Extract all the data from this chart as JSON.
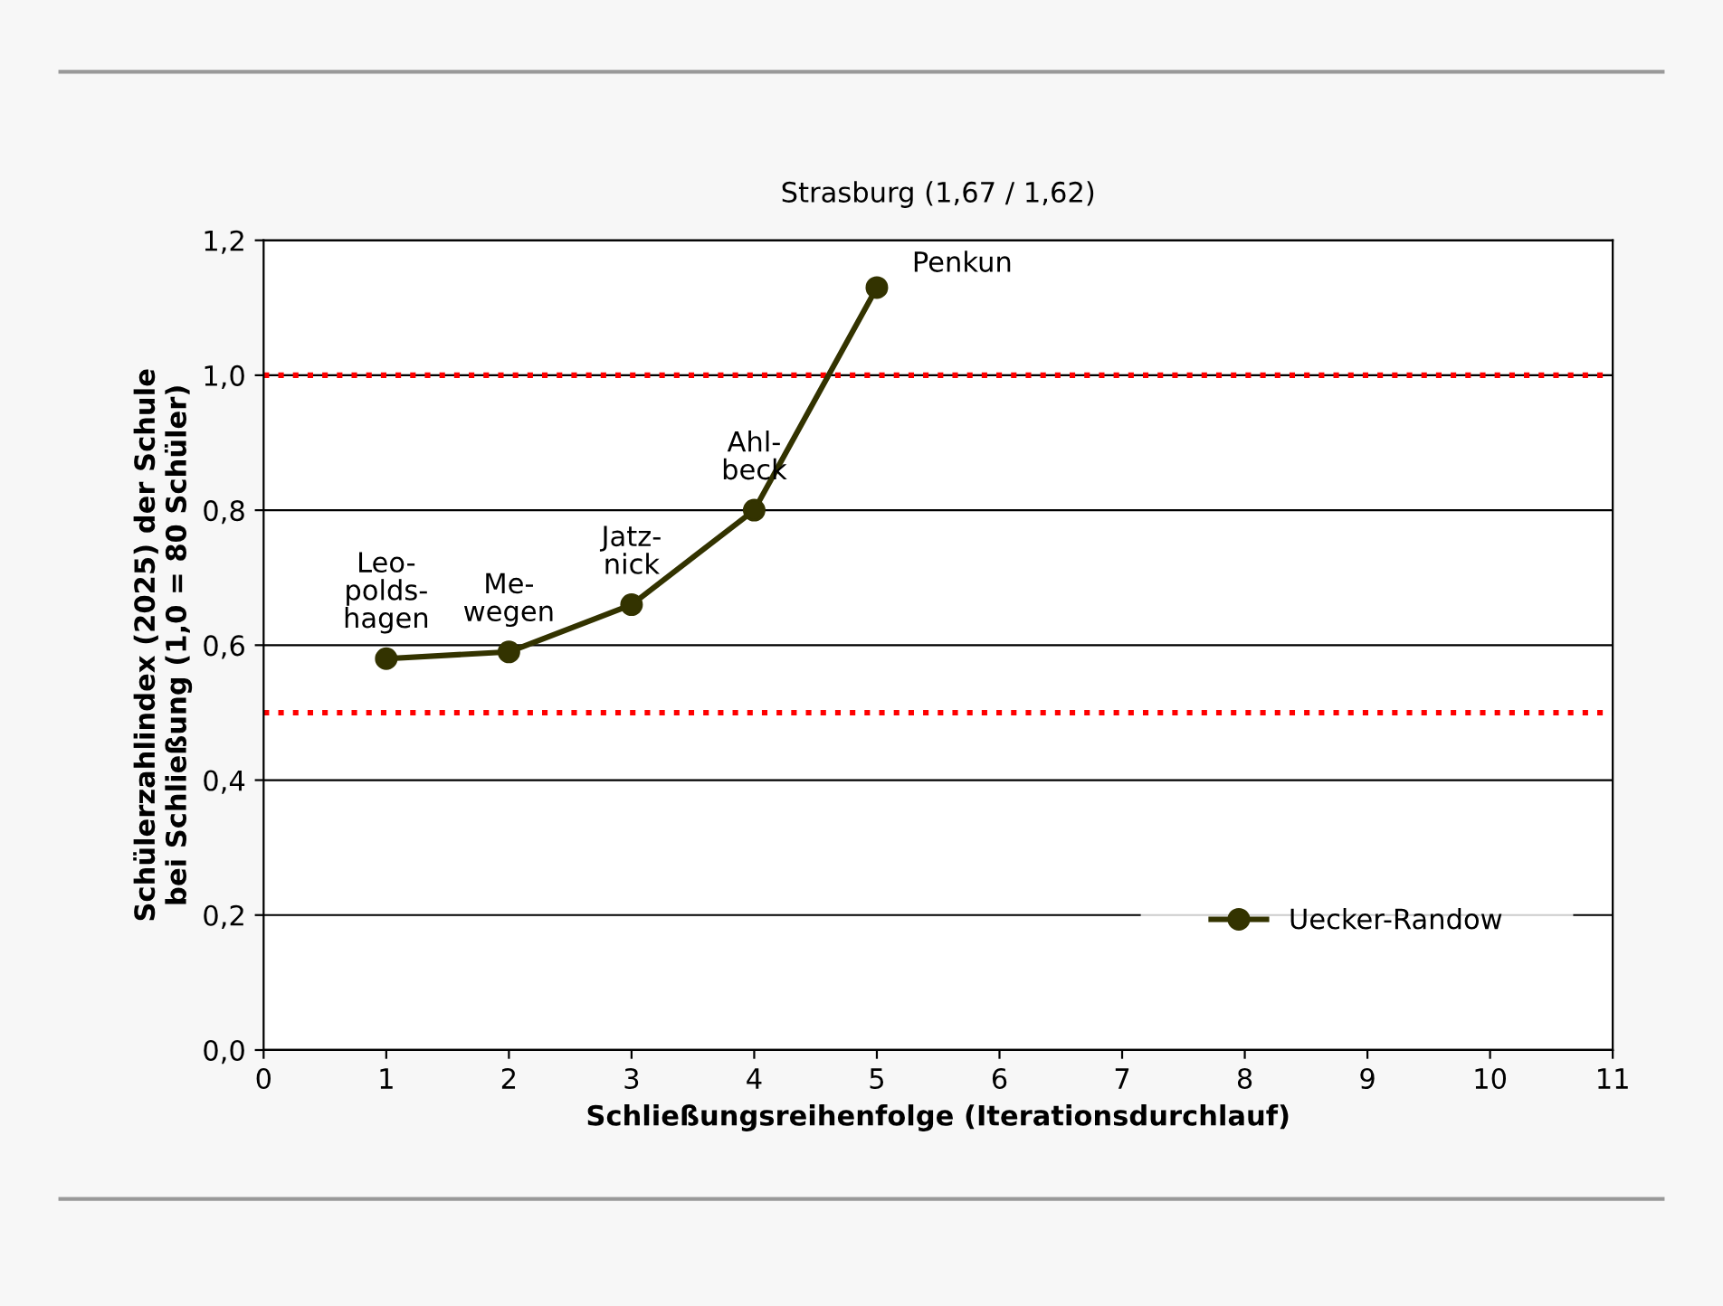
{
  "chart_data": {
    "type": "line",
    "xlabel": "Schließungsreihenfolge (Iterationsdurchlauf)",
    "ylabel": "Schülerzahlindex (2025) der Schule\nbei Schließung (1,0 = 80 Schüler)",
    "x": [
      1,
      2,
      3,
      4,
      5
    ],
    "series": [
      {
        "name": "Uecker-Randow",
        "color": "#333300",
        "values": [
          0.58,
          0.59,
          0.66,
          0.8,
          1.13
        ]
      }
    ],
    "xlim": [
      0,
      11
    ],
    "xticks": [
      0,
      1,
      2,
      3,
      4,
      5,
      6,
      7,
      8,
      9,
      10,
      11
    ],
    "ylim": [
      0,
      1.2
    ],
    "yticks": [
      {
        "value": 0,
        "label": "0,0"
      },
      {
        "value": 0.2,
        "label": "0,2"
      },
      {
        "value": 0.4,
        "label": "0,4"
      },
      {
        "value": 0.6,
        "label": "0,6"
      },
      {
        "value": 0.8,
        "label": "0,8"
      },
      {
        "value": 1.0,
        "label": "1,0"
      },
      {
        "value": 1.2,
        "label": "1,2"
      }
    ],
    "ref_lines": [
      {
        "axis": "y",
        "value": 1.0,
        "color": "#ff0000",
        "line_style": "dotted"
      },
      {
        "axis": "y",
        "value": 0.5,
        "color": "#ff0000",
        "line_style": "dotted"
      }
    ],
    "annotations": [
      {
        "text": "Leo-\npolds-\nhagen",
        "x": 1,
        "y": 0.58
      },
      {
        "text": "Me-\nwegen",
        "x": 2,
        "y": 0.59
      },
      {
        "text": "Jatz-\nnick",
        "x": 3,
        "y": 0.66
      },
      {
        "text": "Ahl-\nbeck",
        "x": 4,
        "y": 0.8
      },
      {
        "text": "Penkun",
        "x": 5,
        "y": 1.13
      },
      "Strasburg (1,67 / 1,62)"
    ],
    "grid": "y",
    "legend": "bottom right",
    "marker": "circle",
    "line_style": "solid"
  }
}
